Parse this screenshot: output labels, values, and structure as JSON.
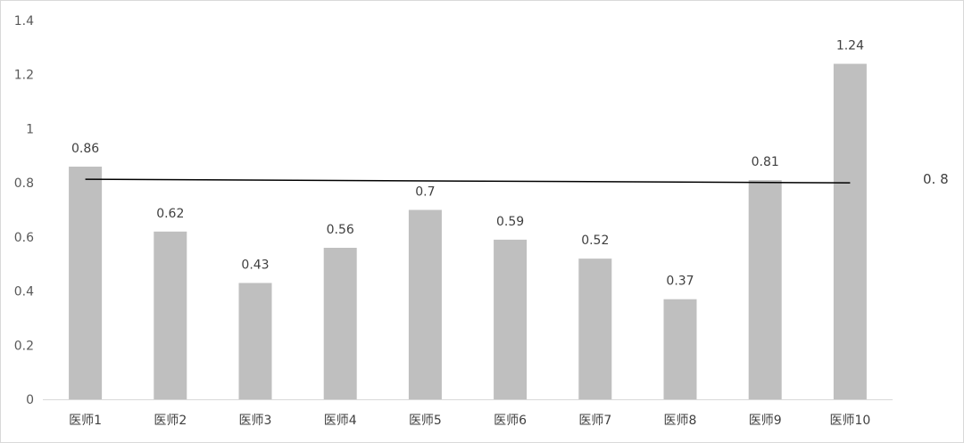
{
  "chart_data": {
    "type": "bar",
    "categories": [
      "医师1",
      "医师2",
      "医师3",
      "医师4",
      "医师5",
      "医师6",
      "医师7",
      "医师8",
      "医师9",
      "医师10"
    ],
    "values": [
      0.86,
      0.62,
      0.43,
      0.56,
      0.7,
      0.59,
      0.52,
      0.37,
      0.81,
      1.24
    ],
    "data_labels": [
      "0.86",
      "0.62",
      "0.43",
      "0.56",
      "0.7",
      "0.59",
      "0.52",
      "0.37",
      "0.81",
      "1.24"
    ],
    "ylim": [
      0,
      1.4
    ],
    "yticks": [
      "0",
      "0.2",
      "0.4",
      "0.6",
      "0.8",
      "1",
      "1.2",
      "1.4"
    ],
    "reference_line": {
      "value": 0.8,
      "label": "0. 8"
    },
    "grid": false,
    "legend": "none",
    "bar_color": "#bfbfbf",
    "line_color": "#000000",
    "axis_color": "#d9d9d9"
  }
}
